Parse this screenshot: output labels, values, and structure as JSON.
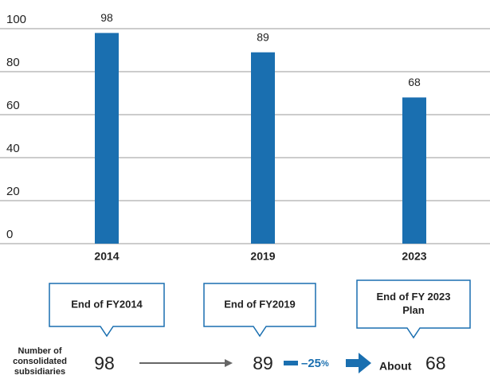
{
  "chart_data": {
    "type": "bar",
    "categories": [
      "2014",
      "2019",
      "2023"
    ],
    "values": [
      98,
      89,
      68
    ],
    "color": "#1a6fb0",
    "ylim": [
      0,
      100
    ],
    "yticks": [
      0,
      20,
      40,
      60,
      80,
      100
    ],
    "grid": true
  },
  "callouts": [
    [
      "End of FY2014"
    ],
    [
      "End of FY2019"
    ],
    [
      "End of FY 2023",
      "Plan"
    ]
  ],
  "summary": {
    "label": [
      "Number of",
      "consolidated",
      "subsidiaries"
    ],
    "change": "–25",
    "change_unit": "%",
    "prefix": "About"
  }
}
